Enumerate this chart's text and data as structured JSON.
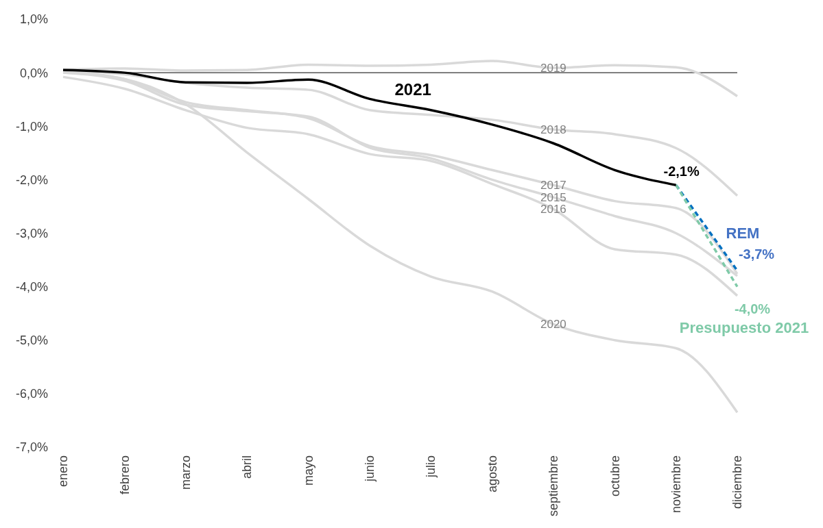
{
  "chart_data": {
    "type": "line",
    "categories": [
      "enero",
      "febrero",
      "marzo",
      "abril",
      "mayo",
      "junio",
      "julio",
      "agosto",
      "septiembre",
      "octubre",
      "noviembre",
      "diciembre"
    ],
    "series": [
      {
        "name": "2019",
        "color": "#d9d9d9",
        "values": [
          0.06,
          0.08,
          0.04,
          0.05,
          0.15,
          0.13,
          0.15,
          0.22,
          0.09,
          0.14,
          0.1,
          -0.44
        ]
      },
      {
        "name": "2018",
        "color": "#d9d9d9",
        "values": [
          0.04,
          -0.03,
          -0.19,
          -0.28,
          -0.32,
          -0.7,
          -0.79,
          -0.88,
          -1.06,
          -1.15,
          -1.41,
          -2.3
        ]
      },
      {
        "name": "2017",
        "color": "#d9d9d9",
        "values": [
          0.02,
          -0.12,
          -0.55,
          -0.7,
          -0.85,
          -1.37,
          -1.54,
          -1.82,
          -2.1,
          -2.4,
          -2.53,
          -3.76
        ]
      },
      {
        "name": "2015",
        "color": "#d9d9d9",
        "values": [
          0.0,
          -0.15,
          -0.6,
          -0.72,
          -0.82,
          -1.4,
          -1.6,
          -2.0,
          -2.33,
          -2.68,
          -3.0,
          -3.8
        ]
      },
      {
        "name": "2016",
        "color": "#d9d9d9",
        "values": [
          -0.08,
          -0.3,
          -0.7,
          -1.03,
          -1.15,
          -1.52,
          -1.65,
          -2.08,
          -2.55,
          -3.3,
          -3.4,
          -4.17
        ]
      },
      {
        "name": "2020",
        "color": "#d9d9d9",
        "values": [
          0.0,
          -0.12,
          -0.59,
          -1.49,
          -2.36,
          -3.23,
          -3.81,
          -4.09,
          -4.7,
          -5.0,
          -5.15,
          -6.35
        ]
      },
      {
        "name": "REM",
        "color": "#0070c0",
        "line_style": "dashed",
        "values": [
          null,
          null,
          null,
          null,
          null,
          null,
          null,
          null,
          null,
          null,
          -2.1,
          -3.7
        ],
        "value_labels": [
          null,
          null,
          null,
          null,
          null,
          null,
          null,
          null,
          null,
          null,
          null,
          "-3,7%"
        ]
      },
      {
        "name": "Presupuesto 2021",
        "color": "#7fcaa8",
        "line_style": "dashed",
        "values": [
          null,
          null,
          null,
          null,
          null,
          null,
          null,
          null,
          null,
          null,
          -2.1,
          -4.0
        ],
        "value_labels": [
          null,
          null,
          null,
          null,
          null,
          null,
          null,
          null,
          null,
          null,
          null,
          "-4,0%"
        ]
      },
      {
        "name": "2021",
        "color": "#000000",
        "values": [
          0.05,
          0.0,
          -0.18,
          -0.19,
          -0.13,
          -0.49,
          -0.7,
          -0.97,
          -1.32,
          -1.82,
          -2.1,
          null
        ],
        "value_labels": [
          null,
          null,
          null,
          null,
          null,
          null,
          null,
          null,
          null,
          null,
          "-2,1%",
          null
        ]
      }
    ],
    "ylim": [
      -7,
      1
    ],
    "yticks": [
      {
        "value": -7,
        "label": "-7,0%"
      },
      {
        "value": -6,
        "label": "-6,0%"
      },
      {
        "value": -5,
        "label": "-5,0%"
      },
      {
        "value": -4,
        "label": "-4,0%"
      },
      {
        "value": -3,
        "label": "-3,0%"
      },
      {
        "value": -2,
        "label": "-2,0%"
      },
      {
        "value": -1,
        "label": "-1,0%"
      },
      {
        "value": 0,
        "label": "0,0%"
      },
      {
        "value": 1,
        "label": "1,0%"
      }
    ],
    "ref_lines": [
      {
        "axis": "y",
        "value": 0,
        "color": "#000000"
      }
    ],
    "grid": false,
    "legend": false,
    "marker": "none",
    "line_style": "solid"
  }
}
